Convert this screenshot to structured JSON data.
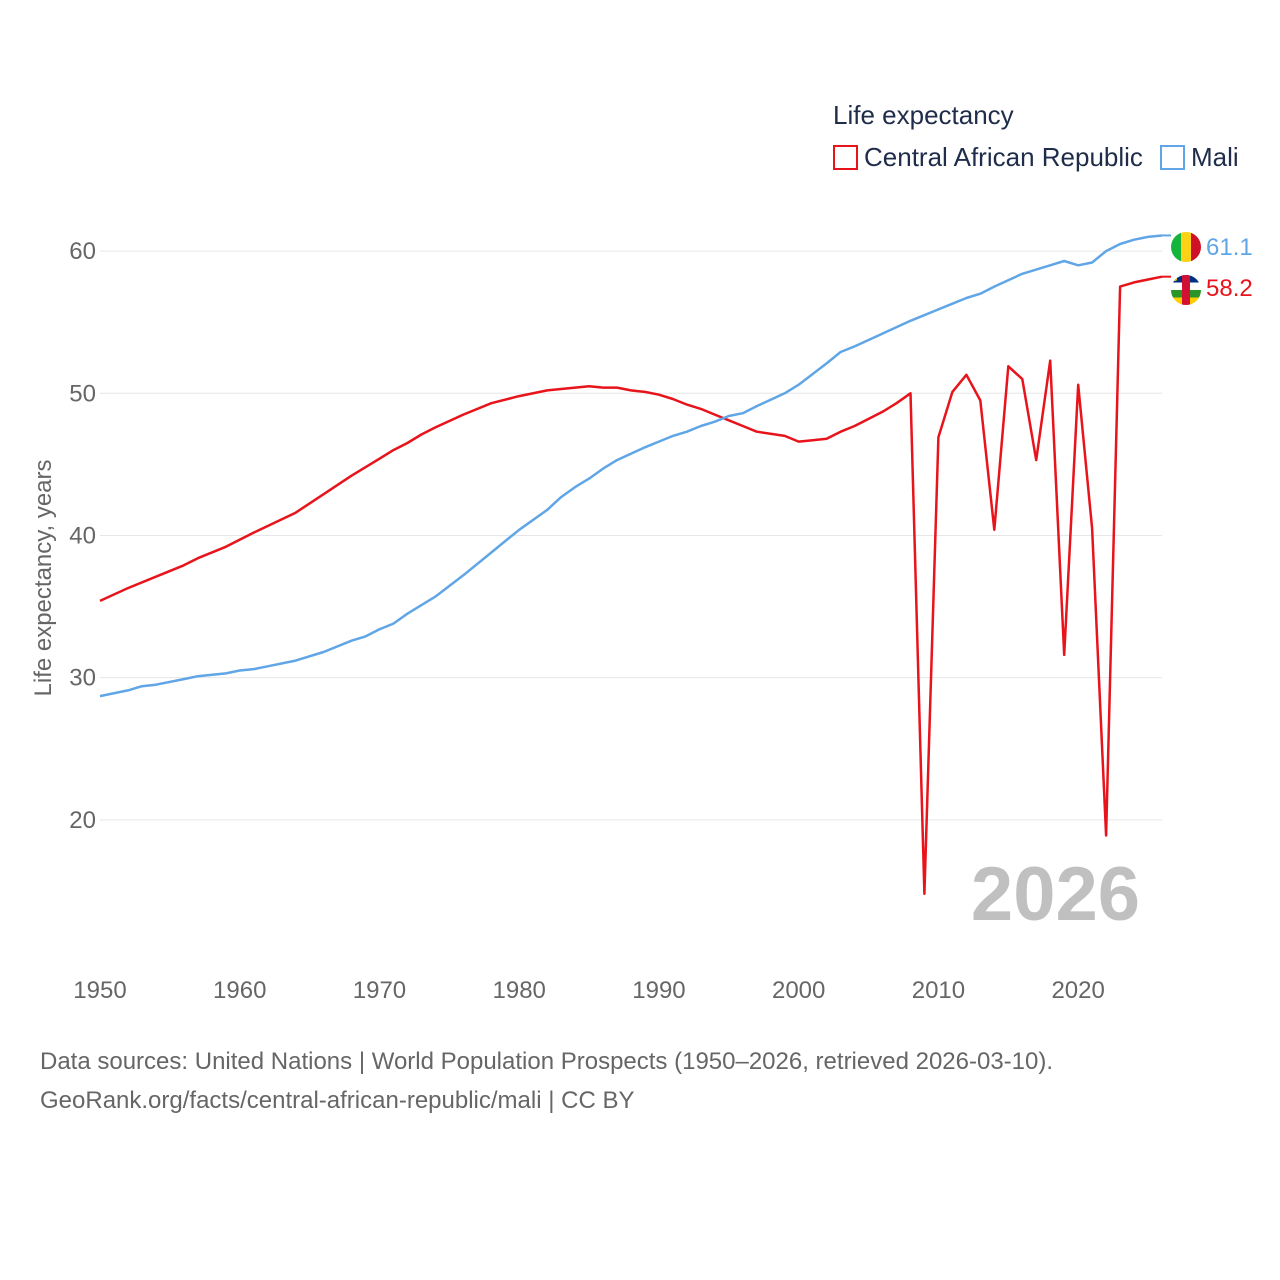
{
  "colors": {
    "car": "#e8141c",
    "mali": "#60a6e6",
    "grid": "#e6e6e6",
    "text": "#666666"
  },
  "chart_data": {
    "type": "line",
    "title": "",
    "legend_title": "Life expectancy",
    "legend_position": "top-right",
    "ylabel": "Life expectancy, years",
    "xlabel": "",
    "xlim": [
      1950,
      2026
    ],
    "ylim": [
      10,
      65
    ],
    "xticks": [
      1950,
      1960,
      1970,
      1980,
      1990,
      2000,
      2010,
      2020
    ],
    "yticks": [
      20,
      30,
      40,
      50,
      60
    ],
    "grid": true,
    "watermark_year": "2026",
    "series": [
      {
        "name": "Central African Republic",
        "color": "#e8141c",
        "end_label": "58.2",
        "x": [
          1950,
          1952,
          1954,
          1956,
          1957,
          1959,
          1961,
          1964,
          1966,
          1968,
          1970,
          1971,
          1972,
          1973,
          1974,
          1976,
          1978,
          1980,
          1982,
          1984,
          1985,
          1986,
          1987,
          1988,
          1989,
          1990,
          1991,
          1992,
          1993,
          1994,
          1995,
          1996,
          1997,
          1999,
          2000,
          2001,
          2002,
          2003,
          2004,
          2005,
          2006,
          2007,
          2008,
          2009,
          2010,
          2011,
          2012,
          2013,
          2014,
          2015,
          2016,
          2017,
          2018,
          2019,
          2020,
          2021,
          2022,
          2023,
          2024,
          2025,
          2026
        ],
        "y": [
          35.4,
          36.3,
          37.1,
          37.9,
          38.4,
          39.2,
          40.2,
          41.6,
          42.9,
          44.2,
          45.4,
          46.0,
          46.5,
          47.1,
          47.6,
          48.5,
          49.3,
          49.8,
          50.2,
          50.4,
          50.5,
          50.4,
          50.4,
          50.2,
          50.1,
          49.9,
          49.6,
          49.2,
          48.9,
          48.5,
          48.1,
          47.7,
          47.3,
          47.0,
          46.6,
          46.7,
          46.8,
          47.3,
          47.7,
          48.2,
          48.7,
          49.3,
          50.0,
          14.8,
          46.9,
          50.1,
          51.3,
          49.5,
          40.4,
          51.9,
          51.0,
          45.3,
          52.3,
          31.6,
          50.6,
          40.5,
          18.9,
          57.5,
          57.8,
          58.0,
          58.2
        ]
      },
      {
        "name": "Mali",
        "color": "#60a6e6",
        "end_label": "61.1",
        "x": [
          1950,
          1952,
          1953,
          1954,
          1956,
          1957,
          1959,
          1960,
          1961,
          1962,
          1964,
          1966,
          1968,
          1969,
          1970,
          1971,
          1972,
          1974,
          1976,
          1978,
          1979,
          1980,
          1982,
          1983,
          1984,
          1985,
          1986,
          1987,
          1989,
          1990,
          1991,
          1992,
          1993,
          1994,
          1995,
          1996,
          1997,
          1999,
          2000,
          2002,
          2003,
          2004,
          2006,
          2008,
          2010,
          2011,
          2012,
          2013,
          2014,
          2016,
          2018,
          2019,
          2020,
          2021,
          2022,
          2023,
          2024,
          2025,
          2026
        ],
        "y": [
          28.7,
          29.1,
          29.4,
          29.5,
          29.9,
          30.1,
          30.3,
          30.5,
          30.6,
          30.8,
          31.2,
          31.8,
          32.6,
          32.9,
          33.4,
          33.8,
          34.5,
          35.7,
          37.2,
          38.8,
          39.6,
          40.4,
          41.8,
          42.7,
          43.4,
          44.0,
          44.7,
          45.3,
          46.2,
          46.6,
          47.0,
          47.3,
          47.7,
          48.0,
          48.4,
          48.6,
          49.1,
          50.0,
          50.6,
          52.1,
          52.9,
          53.3,
          54.2,
          55.1,
          55.9,
          56.3,
          56.7,
          57.0,
          57.5,
          58.4,
          59.0,
          59.3,
          59.0,
          59.2,
          60.0,
          60.5,
          60.8,
          61.0,
          61.1
        ]
      }
    ]
  },
  "source": {
    "line1": "Data sources: United Nations | World Population Prospects (1950–2026, retrieved 2026-03-10).",
    "line2": "GeoRank.org/facts/central-african-republic/mali | CC BY"
  }
}
